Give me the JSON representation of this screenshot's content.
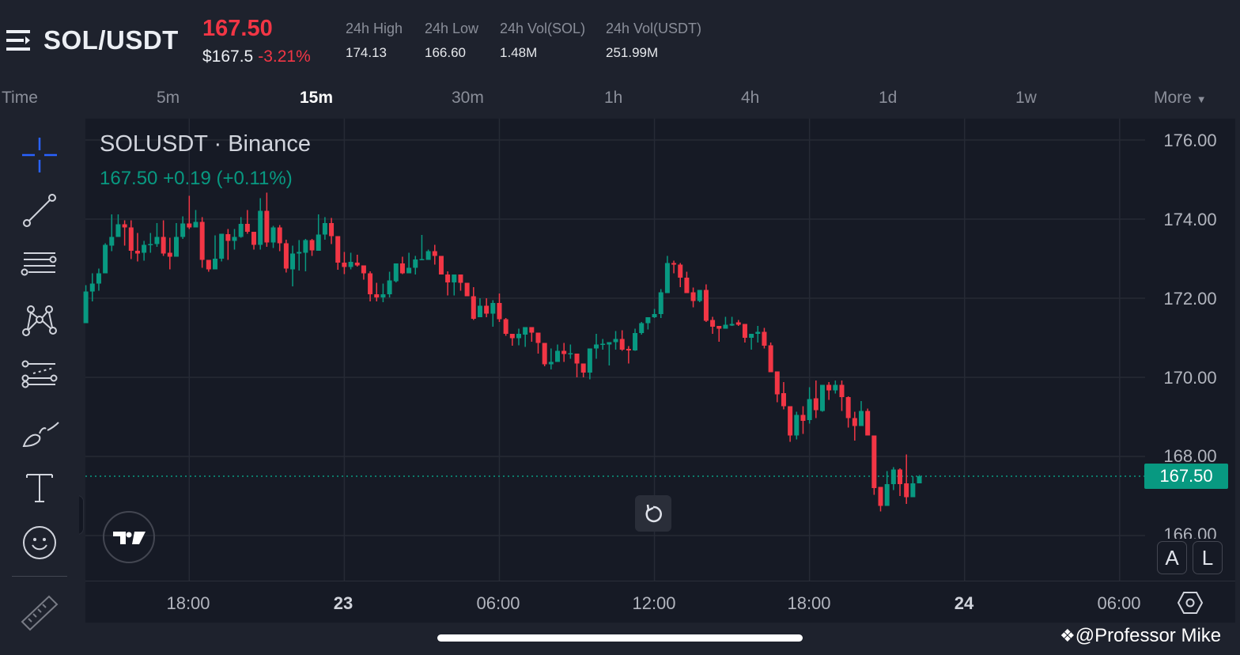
{
  "header": {
    "menu_icon": "hamburger-menu-icon",
    "pair": "SOL/USDT",
    "last_price": "167.50",
    "usd_price": "$167.5",
    "change_pct": "-3.21%",
    "stats": [
      {
        "label": "24h High",
        "value": "174.13"
      },
      {
        "label": "24h Low",
        "value": "166.60"
      },
      {
        "label": "24h Vol(SOL)",
        "value": "1.48M"
      },
      {
        "label": "24h Vol(USDT)",
        "value": "251.99M"
      }
    ]
  },
  "intervals": {
    "items": [
      {
        "label": "Time"
      },
      {
        "label": "5m"
      },
      {
        "label": "15m",
        "active": true
      },
      {
        "label": "30m"
      },
      {
        "label": "1h"
      },
      {
        "label": "4h"
      },
      {
        "label": "1d"
      },
      {
        "label": "1w"
      },
      {
        "label": "More"
      }
    ]
  },
  "toolbar": {
    "tools": [
      "crosshair-icon",
      "trend-line-icon",
      "horizontal-lines-icon",
      "pattern-icon",
      "fib-retracement-icon",
      "brush-icon",
      "text-icon",
      "emoji-icon",
      "ruler-icon"
    ]
  },
  "legend": {
    "title": "SOLUSDT · Binance",
    "ohlc": "167.50  +0.19 (+0.11%)"
  },
  "current_price_tag": "167.50",
  "buttons": {
    "auto": "A",
    "log": "L"
  },
  "watermark": "@Professor Mike",
  "colors": {
    "up": "#089981",
    "down": "#f23645",
    "accent": "#2962ff",
    "background": "#161a25"
  },
  "chart_data": {
    "type": "candlestick",
    "interval": "15m",
    "ylim": [
      165.5,
      177
    ],
    "y_ticks": [
      "176.00",
      "174.00",
      "172.00",
      "170.00",
      "168.00",
      "166.00"
    ],
    "x_ticks": [
      "18:00",
      "23",
      "06:00",
      "12:00",
      "18:00",
      "24",
      "06:00"
    ],
    "current_price": 167.5,
    "candles_ohlc": [
      [
        171.37,
        172.33,
        171.37,
        172.17
      ],
      [
        172.17,
        172.63,
        171.92,
        172.37
      ],
      [
        172.37,
        172.75,
        172.19,
        172.63
      ],
      [
        172.63,
        173.39,
        172.63,
        173.35
      ],
      [
        173.33,
        174.12,
        173.19,
        173.55
      ],
      [
        173.55,
        174.12,
        173.55,
        173.87
      ],
      [
        173.87,
        173.97,
        173.33,
        173.79
      ],
      [
        173.79,
        173.97,
        172.99,
        173.2
      ],
      [
        173.2,
        173.65,
        172.93,
        173.13
      ],
      [
        173.15,
        173.45,
        172.95,
        173.35
      ],
      [
        173.35,
        173.65,
        173.15,
        173.37
      ],
      [
        173.37,
        173.9,
        173.3,
        173.55
      ],
      [
        173.55,
        173.97,
        173.07,
        173.13
      ],
      [
        173.15,
        173.53,
        172.73,
        173.05
      ],
      [
        173.05,
        173.9,
        173.05,
        173.55
      ],
      [
        173.55,
        174.07,
        173.5,
        173.89
      ],
      [
        173.89,
        174.59,
        173.75,
        173.79
      ],
      [
        173.79,
        174.23,
        173.79,
        173.93
      ],
      [
        173.93,
        174.05,
        172.77,
        172.97
      ],
      [
        172.97,
        172.97,
        172.67,
        172.73
      ],
      [
        172.73,
        173.59,
        172.73,
        173.0
      ],
      [
        173.0,
        173.63,
        172.93,
        173.63
      ],
      [
        173.62,
        173.75,
        172.97,
        173.45
      ],
      [
        173.45,
        173.75,
        173.23,
        173.55
      ],
      [
        173.55,
        174.05,
        173.53,
        173.88
      ],
      [
        173.88,
        174.23,
        173.63,
        173.68
      ],
      [
        173.68,
        173.68,
        173.23,
        173.35
      ],
      [
        173.35,
        174.53,
        173.23,
        174.21
      ],
      [
        174.21,
        174.67,
        173.3,
        173.41
      ],
      [
        173.41,
        173.83,
        173.27,
        173.79
      ],
      [
        173.79,
        173.85,
        173.19,
        173.39
      ],
      [
        173.39,
        173.48,
        172.65,
        172.75
      ],
      [
        172.73,
        173.33,
        172.3,
        173.13
      ],
      [
        173.13,
        173.47,
        172.7,
        173.17
      ],
      [
        173.15,
        173.5,
        172.68,
        173.47
      ],
      [
        173.47,
        173.5,
        173.07,
        173.21
      ],
      [
        173.2,
        174.12,
        173.2,
        173.61
      ],
      [
        173.61,
        174.05,
        173.48,
        173.9
      ],
      [
        173.9,
        174.03,
        173.37,
        173.57
      ],
      [
        173.57,
        173.57,
        172.72,
        172.9
      ],
      [
        172.9,
        173.17,
        172.61,
        172.79
      ],
      [
        172.79,
        173.15,
        172.73,
        172.92
      ],
      [
        172.9,
        173.1,
        172.8,
        172.83
      ],
      [
        172.83,
        172.83,
        172.47,
        172.63
      ],
      [
        172.63,
        172.68,
        171.92,
        172.1
      ],
      [
        172.1,
        172.39,
        171.92,
        172.02
      ],
      [
        172.02,
        172.37,
        171.9,
        172.1
      ],
      [
        172.1,
        172.67,
        172.02,
        172.45
      ],
      [
        172.43,
        172.88,
        172.4,
        172.88
      ],
      [
        172.88,
        173.05,
        172.61,
        172.63
      ],
      [
        172.63,
        173.15,
        172.63,
        172.77
      ],
      [
        172.77,
        173.07,
        172.6,
        172.98
      ],
      [
        172.97,
        173.6,
        172.97,
        172.99
      ],
      [
        172.97,
        173.23,
        172.97,
        173.19
      ],
      [
        173.19,
        173.35,
        172.85,
        173.07
      ],
      [
        173.07,
        173.07,
        172.6,
        172.6
      ],
      [
        172.6,
        172.68,
        172.07,
        172.4
      ],
      [
        172.4,
        172.6,
        172.07,
        172.6
      ],
      [
        172.6,
        172.6,
        172.19,
        172.39
      ],
      [
        172.39,
        172.39,
        172.05,
        172.05
      ],
      [
        172.05,
        172.28,
        171.45,
        171.48
      ],
      [
        171.52,
        172.0,
        171.52,
        171.81
      ],
      [
        171.81,
        172.0,
        171.52,
        171.61
      ],
      [
        171.61,
        171.95,
        171.28,
        171.88
      ],
      [
        171.88,
        172.12,
        171.4,
        171.47
      ],
      [
        171.47,
        171.5,
        171.05,
        171.1
      ],
      [
        171.1,
        171.1,
        170.8,
        170.99
      ],
      [
        170.99,
        171.23,
        170.81,
        171.1
      ],
      [
        171.08,
        171.27,
        170.77,
        171.27
      ],
      [
        171.27,
        171.27,
        170.9,
        171.13
      ],
      [
        171.13,
        171.13,
        170.6,
        170.87
      ],
      [
        170.87,
        170.87,
        170.28,
        170.33
      ],
      [
        170.33,
        170.73,
        170.2,
        170.39
      ],
      [
        170.39,
        170.83,
        170.39,
        170.67
      ],
      [
        170.67,
        170.87,
        170.39,
        170.59
      ],
      [
        170.59,
        170.83,
        170.47,
        170.61
      ],
      [
        170.6,
        170.6,
        170.0,
        170.35
      ],
      [
        170.35,
        170.35,
        170.0,
        170.12
      ],
      [
        170.12,
        170.73,
        169.95,
        170.73
      ],
      [
        170.73,
        171.1,
        170.47,
        170.83
      ],
      [
        170.83,
        170.97,
        170.7,
        170.85
      ],
      [
        170.83,
        170.89,
        170.3,
        170.89
      ],
      [
        170.89,
        171.17,
        170.7,
        170.97
      ],
      [
        170.97,
        171.19,
        170.67,
        170.7
      ],
      [
        170.72,
        170.79,
        170.35,
        170.68
      ],
      [
        170.68,
        171.23,
        170.67,
        171.12
      ],
      [
        171.12,
        171.4,
        171.08,
        171.37
      ],
      [
        171.37,
        171.52,
        171.21,
        171.52
      ],
      [
        171.52,
        171.73,
        171.5,
        171.6
      ],
      [
        171.6,
        172.23,
        171.5,
        172.15
      ],
      [
        172.13,
        173.07,
        172.13,
        172.89
      ],
      [
        172.89,
        172.95,
        172.63,
        172.85
      ],
      [
        172.85,
        172.89,
        172.28,
        172.52
      ],
      [
        172.52,
        172.67,
        172.13,
        172.13
      ],
      [
        172.15,
        172.27,
        171.77,
        171.93
      ],
      [
        171.93,
        172.21,
        171.9,
        172.21
      ],
      [
        172.21,
        172.35,
        171.4,
        171.43
      ],
      [
        171.45,
        171.53,
        171.1,
        171.28
      ],
      [
        171.3,
        171.3,
        170.9,
        171.23
      ],
      [
        171.23,
        171.53,
        171.23,
        171.33
      ],
      [
        171.31,
        171.53,
        171.3,
        171.35
      ],
      [
        171.39,
        171.45,
        171.3,
        171.33
      ],
      [
        171.35,
        171.35,
        170.88,
        171.0
      ],
      [
        171.0,
        171.1,
        170.7,
        171.1
      ],
      [
        171.1,
        171.3,
        170.88,
        171.15
      ],
      [
        171.15,
        171.25,
        170.73,
        170.8
      ],
      [
        170.81,
        170.88,
        170.13,
        170.13
      ],
      [
        170.15,
        170.15,
        169.37,
        169.57
      ],
      [
        169.6,
        169.88,
        169.19,
        169.27
      ],
      [
        169.27,
        169.27,
        168.37,
        168.53
      ],
      [
        168.53,
        169.13,
        168.43,
        169.05
      ],
      [
        169.05,
        169.27,
        168.57,
        168.9
      ],
      [
        168.92,
        169.75,
        168.83,
        169.45
      ],
      [
        169.47,
        169.92,
        168.97,
        169.17
      ],
      [
        169.15,
        169.81,
        169.13,
        169.81
      ],
      [
        169.81,
        169.88,
        169.43,
        169.67
      ],
      [
        169.67,
        169.92,
        169.59,
        169.81
      ],
      [
        169.81,
        169.92,
        169.15,
        169.5
      ],
      [
        169.5,
        169.52,
        168.73,
        168.97
      ],
      [
        168.97,
        169.13,
        168.4,
        168.77
      ],
      [
        168.77,
        169.4,
        168.77,
        169.15
      ],
      [
        169.15,
        169.21,
        168.53,
        168.53
      ],
      [
        168.53,
        168.53,
        167.03,
        167.2
      ],
      [
        167.23,
        167.23,
        166.61,
        166.75
      ],
      [
        166.75,
        167.63,
        166.75,
        167.3
      ],
      [
        167.3,
        167.73,
        167.15,
        167.67
      ],
      [
        167.67,
        167.7,
        167.0,
        167.3
      ],
      [
        167.32,
        168.05,
        166.8,
        166.97
      ],
      [
        166.97,
        167.5,
        166.97,
        167.32
      ],
      [
        167.32,
        167.53,
        167.32,
        167.5
      ]
    ]
  }
}
